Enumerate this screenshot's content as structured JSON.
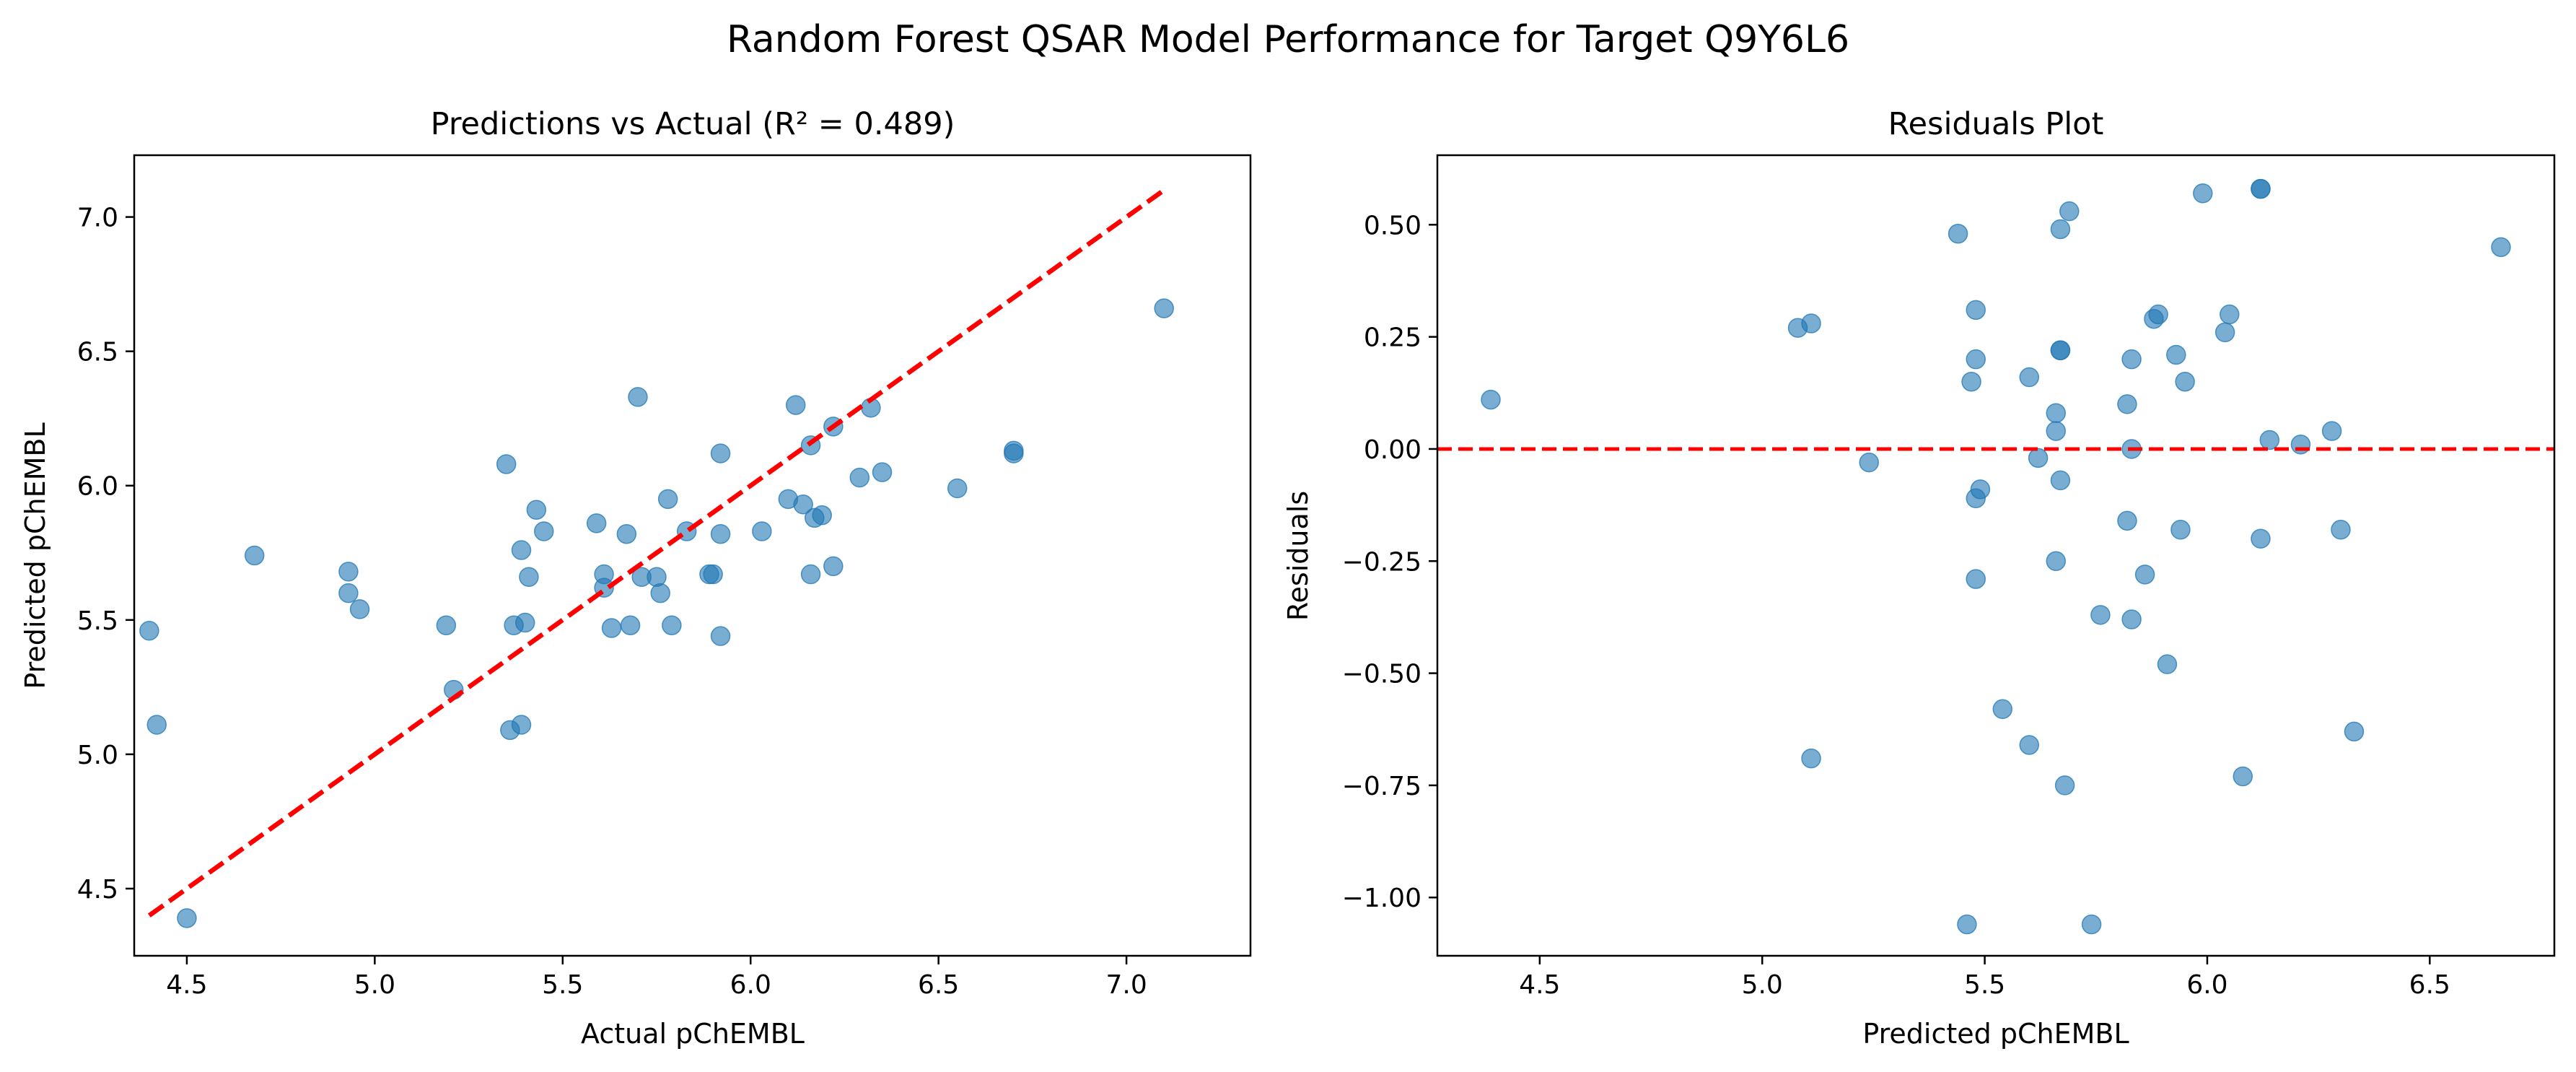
{
  "figure": {
    "title": "Random Forest QSAR Model Performance for Target Q9Y6L6"
  },
  "chart_data": [
    {
      "type": "scatter",
      "title": "Predictions vs Actual (R² = 0.489)",
      "xlabel": "Actual pChEMBL",
      "ylabel": "Predicted pChEMBL",
      "xlim": [
        4.36,
        7.33
      ],
      "ylim": [
        4.25,
        7.23
      ],
      "xticks": [
        4.5,
        5.0,
        5.5,
        6.0,
        6.5,
        7.0
      ],
      "xtick_labels": [
        "4.5",
        "5.0",
        "5.5",
        "6.0",
        "6.5",
        "7.0"
      ],
      "yticks": [
        4.5,
        5.0,
        5.5,
        6.0,
        6.5,
        7.0
      ],
      "ytick_labels": [
        "4.5",
        "5.0",
        "5.5",
        "6.0",
        "6.5",
        "7.0"
      ],
      "grid": false,
      "point_color": "#1f77b4",
      "reference_line": {
        "style": "dashed",
        "color": "#ff0000",
        "x": [
          4.4,
          7.1
        ],
        "y": [
          4.4,
          7.1
        ]
      },
      "points": [
        {
          "x": 4.4,
          "y": 5.46
        },
        {
          "x": 4.42,
          "y": 5.11
        },
        {
          "x": 4.5,
          "y": 4.39
        },
        {
          "x": 4.68,
          "y": 5.74
        },
        {
          "x": 4.93,
          "y": 5.68
        },
        {
          "x": 4.93,
          "y": 5.6
        },
        {
          "x": 4.96,
          "y": 5.54
        },
        {
          "x": 5.19,
          "y": 5.48
        },
        {
          "x": 5.21,
          "y": 5.24
        },
        {
          "x": 5.35,
          "y": 6.08
        },
        {
          "x": 5.36,
          "y": 5.09
        },
        {
          "x": 5.37,
          "y": 5.48
        },
        {
          "x": 5.39,
          "y": 5.11
        },
        {
          "x": 5.39,
          "y": 5.76
        },
        {
          "x": 5.4,
          "y": 5.49
        },
        {
          "x": 5.41,
          "y": 5.66
        },
        {
          "x": 5.43,
          "y": 5.91
        },
        {
          "x": 5.45,
          "y": 5.83
        },
        {
          "x": 5.59,
          "y": 5.86
        },
        {
          "x": 5.61,
          "y": 5.67
        },
        {
          "x": 5.61,
          "y": 5.62
        },
        {
          "x": 5.63,
          "y": 5.47
        },
        {
          "x": 5.67,
          "y": 5.82
        },
        {
          "x": 5.68,
          "y": 5.48
        },
        {
          "x": 5.7,
          "y": 6.33
        },
        {
          "x": 5.71,
          "y": 5.66
        },
        {
          "x": 5.75,
          "y": 5.66
        },
        {
          "x": 5.76,
          "y": 5.6
        },
        {
          "x": 5.78,
          "y": 5.95
        },
        {
          "x": 5.79,
          "y": 5.48
        },
        {
          "x": 5.83,
          "y": 5.83
        },
        {
          "x": 5.89,
          "y": 5.67
        },
        {
          "x": 5.9,
          "y": 5.67
        },
        {
          "x": 5.92,
          "y": 6.12
        },
        {
          "x": 5.92,
          "y": 5.82
        },
        {
          "x": 5.92,
          "y": 5.44
        },
        {
          "x": 6.03,
          "y": 5.83
        },
        {
          "x": 6.1,
          "y": 5.95
        },
        {
          "x": 6.12,
          "y": 6.3
        },
        {
          "x": 6.14,
          "y": 5.93
        },
        {
          "x": 6.16,
          "y": 6.15
        },
        {
          "x": 6.16,
          "y": 5.67
        },
        {
          "x": 6.17,
          "y": 5.88
        },
        {
          "x": 6.19,
          "y": 5.89
        },
        {
          "x": 6.22,
          "y": 6.22
        },
        {
          "x": 6.22,
          "y": 5.7
        },
        {
          "x": 6.29,
          "y": 6.03
        },
        {
          "x": 6.32,
          "y": 6.29
        },
        {
          "x": 6.35,
          "y": 6.05
        },
        {
          "x": 6.55,
          "y": 5.99
        },
        {
          "x": 6.7,
          "y": 6.12
        },
        {
          "x": 6.7,
          "y": 6.13
        },
        {
          "x": 7.1,
          "y": 6.66
        }
      ]
    },
    {
      "type": "scatter",
      "title": "Residuals Plot",
      "xlabel": "Predicted pChEMBL",
      "ylabel": "Residuals",
      "xlim": [
        4.27,
        6.78
      ],
      "ylim": [
        -1.13,
        0.655
      ],
      "xticks": [
        4.5,
        5.0,
        5.5,
        6.0,
        6.5
      ],
      "xtick_labels": [
        "4.5",
        "5.0",
        "5.5",
        "6.0",
        "6.5"
      ],
      "yticks": [
        0.5,
        0.25,
        0.0,
        -0.25,
        -0.5,
        -0.75,
        -1.0
      ],
      "ytick_labels": [
        "0.50",
        "0.25",
        "0.00",
        "−0.25",
        "−0.50",
        "−0.75",
        "−1.00"
      ],
      "grid": false,
      "point_color": "#1f77b4",
      "reference_line": {
        "style": "dashed",
        "color": "#ff0000",
        "y": 0.0
      },
      "points": [
        {
          "x": 4.39,
          "y": 0.11
        },
        {
          "x": 5.08,
          "y": 0.27
        },
        {
          "x": 5.11,
          "y": 0.28
        },
        {
          "x": 5.11,
          "y": -0.69
        },
        {
          "x": 5.24,
          "y": -0.03
        },
        {
          "x": 5.44,
          "y": 0.48
        },
        {
          "x": 5.46,
          "y": -1.06
        },
        {
          "x": 5.47,
          "y": 0.15
        },
        {
          "x": 5.48,
          "y": 0.31
        },
        {
          "x": 5.48,
          "y": 0.2
        },
        {
          "x": 5.48,
          "y": -0.11
        },
        {
          "x": 5.48,
          "y": -0.29
        },
        {
          "x": 5.49,
          "y": -0.09
        },
        {
          "x": 5.54,
          "y": -0.58
        },
        {
          "x": 5.6,
          "y": 0.16
        },
        {
          "x": 5.6,
          "y": -0.66
        },
        {
          "x": 5.62,
          "y": -0.02
        },
        {
          "x": 5.66,
          "y": 0.08
        },
        {
          "x": 5.66,
          "y": 0.04
        },
        {
          "x": 5.66,
          "y": -0.25
        },
        {
          "x": 5.67,
          "y": 0.49
        },
        {
          "x": 5.67,
          "y": -0.07
        },
        {
          "x": 5.67,
          "y": 0.22
        },
        {
          "x": 5.67,
          "y": 0.22
        },
        {
          "x": 5.68,
          "y": -0.75
        },
        {
          "x": 5.69,
          "y": 0.53
        },
        {
          "x": 5.74,
          "y": -1.06
        },
        {
          "x": 5.76,
          "y": -0.37
        },
        {
          "x": 5.82,
          "y": -0.16
        },
        {
          "x": 5.82,
          "y": 0.1
        },
        {
          "x": 5.83,
          "y": 0.2
        },
        {
          "x": 5.83,
          "y": 0.0
        },
        {
          "x": 5.83,
          "y": -0.38
        },
        {
          "x": 5.86,
          "y": -0.28
        },
        {
          "x": 5.88,
          "y": 0.29
        },
        {
          "x": 5.89,
          "y": 0.3
        },
        {
          "x": 5.91,
          "y": -0.48
        },
        {
          "x": 5.93,
          "y": 0.21
        },
        {
          "x": 5.94,
          "y": -0.18
        },
        {
          "x": 5.95,
          "y": 0.15
        },
        {
          "x": 5.99,
          "y": 0.57
        },
        {
          "x": 6.04,
          "y": 0.26
        },
        {
          "x": 6.05,
          "y": 0.3
        },
        {
          "x": 6.08,
          "y": -0.73
        },
        {
          "x": 6.12,
          "y": -0.2
        },
        {
          "x": 6.12,
          "y": 0.58
        },
        {
          "x": 6.12,
          "y": 0.58
        },
        {
          "x": 6.14,
          "y": 0.02
        },
        {
          "x": 6.21,
          "y": 0.01
        },
        {
          "x": 6.28,
          "y": 0.04
        },
        {
          "x": 6.3,
          "y": -0.18
        },
        {
          "x": 6.33,
          "y": -0.63
        },
        {
          "x": 6.66,
          "y": 0.45
        }
      ]
    }
  ]
}
